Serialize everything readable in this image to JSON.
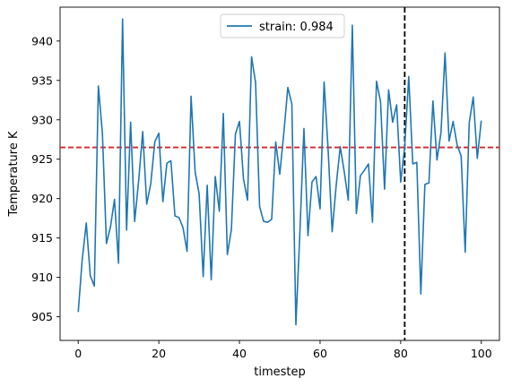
{
  "chart_data": {
    "type": "line",
    "xlabel": "timestep",
    "ylabel": "Temperature K",
    "xlim": [
      -4.5,
      104.5
    ],
    "ylim": [
      902.0,
      944.3
    ],
    "xticks": [
      0,
      20,
      40,
      60,
      80,
      100
    ],
    "yticks": [
      905,
      910,
      915,
      920,
      925,
      930,
      935,
      940
    ],
    "grid": false,
    "legend_position": "top-center",
    "series": [
      {
        "name": "strain: 0.984",
        "color": "#1f77b4",
        "x": [
          0,
          1,
          2,
          3,
          4,
          5,
          6,
          7,
          8,
          9,
          10,
          11,
          12,
          13,
          14,
          15,
          16,
          17,
          18,
          19,
          20,
          21,
          22,
          23,
          24,
          25,
          26,
          27,
          28,
          29,
          30,
          31,
          32,
          33,
          34,
          35,
          36,
          37,
          38,
          39,
          40,
          41,
          42,
          43,
          44,
          45,
          46,
          47,
          48,
          49,
          50,
          51,
          52,
          53,
          54,
          55,
          56,
          57,
          58,
          59,
          60,
          61,
          62,
          63,
          64,
          65,
          66,
          67,
          68,
          69,
          70,
          71,
          72,
          73,
          74,
          75,
          76,
          77,
          78,
          79,
          80,
          81,
          82,
          83,
          84,
          85,
          86,
          87,
          88,
          89,
          90,
          91,
          92,
          93,
          94,
          95,
          96,
          97,
          98,
          99,
          100
        ],
        "values": [
          905.6,
          912.3,
          916.9,
          910.2,
          908.9,
          934.3,
          928.3,
          914.3,
          916.4,
          919.9,
          911.8,
          942.8,
          916.0,
          929.7,
          917.1,
          922.3,
          928.5,
          919.3,
          921.9,
          927.2,
          928.3,
          919.6,
          924.5,
          924.8,
          917.8,
          917.6,
          916.3,
          913.3,
          933.0,
          923.4,
          920.6,
          910.1,
          921.7,
          909.7,
          922.8,
          918.4,
          930.8,
          912.9,
          916.1,
          928.2,
          929.8,
          922.5,
          919.8,
          938.0,
          934.7,
          919.0,
          917.1,
          917.0,
          917.4,
          927.2,
          923.1,
          928.3,
          934.1,
          932.0,
          904.0,
          915.8,
          928.9,
          915.3,
          922.1,
          922.8,
          918.7,
          934.8,
          926.2,
          915.8,
          921.7,
          926.6,
          923.4,
          919.8,
          942.0,
          918.1,
          922.9,
          923.6,
          924.4,
          917.0,
          934.9,
          932.3,
          921.2,
          933.8,
          929.7,
          931.9,
          922.1,
          926.6,
          935.5,
          924.4,
          924.6,
          907.9,
          921.8,
          922.0,
          932.4,
          924.9,
          928.4,
          938.5,
          927.3,
          929.8,
          926.8,
          925.4,
          913.2,
          929.6,
          932.9,
          925.1,
          929.9
        ]
      }
    ],
    "reference_lines": [
      {
        "orientation": "horizontal",
        "value": 926.5,
        "color": "#d62728",
        "style": "dashed"
      },
      {
        "orientation": "vertical",
        "value": 81,
        "color": "#000000",
        "style": "dashed"
      }
    ]
  }
}
